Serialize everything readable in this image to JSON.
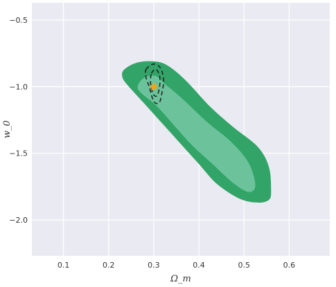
{
  "chart_data": {
    "type": "contour",
    "xlabel": "Ω_m",
    "ylabel": "w_0",
    "xlim": [
      0.03,
      0.69
    ],
    "ylim": [
      -2.27,
      -0.37
    ],
    "grid": true,
    "x_ticks": [
      0.1,
      0.2,
      0.3,
      0.4,
      0.5,
      0.6
    ],
    "x_tick_labels": [
      "0.1",
      "0.2",
      "0.3",
      "0.4",
      "0.5",
      "0.6"
    ],
    "y_ticks": [
      -0.5,
      -1.0,
      -1.5,
      -2.0
    ],
    "y_tick_labels": [
      "−0.5",
      "−1.0",
      "−1.5",
      "−2.0"
    ],
    "series": [
      {
        "kind": "filled-contour",
        "level": "outer",
        "color": "#32a467",
        "points": [
          [
            0.235,
            -0.87
          ],
          [
            0.262,
            -0.82
          ],
          [
            0.3,
            -0.81
          ],
          [
            0.33,
            -0.84
          ],
          [
            0.37,
            -0.95
          ],
          [
            0.425,
            -1.15
          ],
          [
            0.475,
            -1.3
          ],
          [
            0.53,
            -1.45
          ],
          [
            0.555,
            -1.6
          ],
          [
            0.56,
            -1.78
          ],
          [
            0.555,
            -1.85
          ],
          [
            0.53,
            -1.87
          ],
          [
            0.49,
            -1.84
          ],
          [
            0.44,
            -1.73
          ],
          [
            0.4,
            -1.58
          ],
          [
            0.36,
            -1.43
          ],
          [
            0.32,
            -1.28
          ],
          [
            0.28,
            -1.13
          ],
          [
            0.24,
            -0.98
          ],
          [
            0.23,
            -0.92
          ]
        ]
      },
      {
        "kind": "filled-contour",
        "level": "inner",
        "color": "#6cc39b",
        "points": [
          [
            0.265,
            -0.99
          ],
          [
            0.28,
            -0.93
          ],
          [
            0.305,
            -0.92
          ],
          [
            0.325,
            -0.98
          ],
          [
            0.36,
            -1.08
          ],
          [
            0.42,
            -1.27
          ],
          [
            0.47,
            -1.41
          ],
          [
            0.51,
            -1.57
          ],
          [
            0.525,
            -1.74
          ],
          [
            0.51,
            -1.79
          ],
          [
            0.475,
            -1.72
          ],
          [
            0.43,
            -1.58
          ],
          [
            0.385,
            -1.44
          ],
          [
            0.345,
            -1.29
          ],
          [
            0.305,
            -1.14
          ],
          [
            0.27,
            -1.04
          ]
        ]
      },
      {
        "kind": "contour-line",
        "style": "dashed",
        "color": "#222222",
        "points": [
          [
            0.283,
            -0.87
          ],
          [
            0.3,
            -0.83
          ],
          [
            0.315,
            -0.86
          ],
          [
            0.322,
            -0.95
          ],
          [
            0.318,
            -1.05
          ],
          [
            0.312,
            -1.12
          ],
          [
            0.3,
            -1.11
          ],
          [
            0.29,
            -1.0
          ],
          [
            0.283,
            -0.93
          ]
        ]
      },
      {
        "kind": "contour-line",
        "style": "dashed",
        "color": "#222222",
        "points": [
          [
            0.295,
            -0.9
          ],
          [
            0.305,
            -0.87
          ],
          [
            0.313,
            -0.92
          ],
          [
            0.313,
            -1.0
          ],
          [
            0.307,
            -1.07
          ],
          [
            0.298,
            -1.05
          ],
          [
            0.293,
            -0.97
          ]
        ]
      },
      {
        "kind": "marker",
        "shape": "star",
        "color": "#f0a51a",
        "x": 0.3,
        "y": -1.0
      }
    ]
  }
}
